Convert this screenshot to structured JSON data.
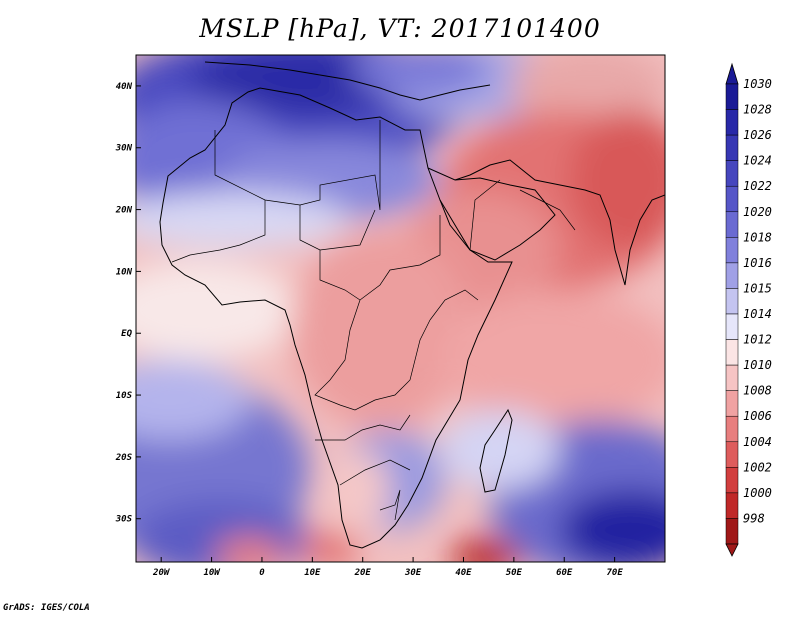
{
  "title": "MSLP [hPa], VT: 2017101400",
  "credit": "GrADS: IGES/COLA",
  "map": {
    "lon_range": [
      -25,
      80
    ],
    "lat_range": [
      -37,
      45
    ],
    "x_ticks": [
      {
        "label": "20W",
        "value": -20
      },
      {
        "label": "10W",
        "value": -10
      },
      {
        "label": "0",
        "value": 0
      },
      {
        "label": "10E",
        "value": 10
      },
      {
        "label": "20E",
        "value": 20
      },
      {
        "label": "30E",
        "value": 30
      },
      {
        "label": "40E",
        "value": 40
      },
      {
        "label": "50E",
        "value": 50
      },
      {
        "label": "60E",
        "value": 60
      },
      {
        "label": "70E",
        "value": 70
      }
    ],
    "y_ticks": [
      {
        "label": "40N",
        "value": 40
      },
      {
        "label": "30N",
        "value": 30
      },
      {
        "label": "20N",
        "value": 20
      },
      {
        "label": "10N",
        "value": 10
      },
      {
        "label": "EQ",
        "value": 0
      },
      {
        "label": "10S",
        "value": -10
      },
      {
        "label": "20S",
        "value": -20
      },
      {
        "label": "30S",
        "value": -30
      }
    ]
  },
  "colorbar": {
    "levels": [
      "1030",
      "1028",
      "1026",
      "1024",
      "1022",
      "1020",
      "1018",
      "1016",
      "1015",
      "1014",
      "1012",
      "1010",
      "1008",
      "1006",
      "1004",
      "1002",
      "1000",
      "998"
    ],
    "colors": [
      "#1a1a96",
      "#2828a8",
      "#3737b4",
      "#4646be",
      "#5656c8",
      "#6a6ad2",
      "#8080dc",
      "#a0a0e6",
      "#c4c4f0",
      "#e6e6fa",
      "#fbe5e5",
      "#f6c4c4",
      "#f0a2a2",
      "#e87e7e",
      "#de5c5c",
      "#d23e3e",
      "#c02828",
      "#a01818"
    ]
  }
}
